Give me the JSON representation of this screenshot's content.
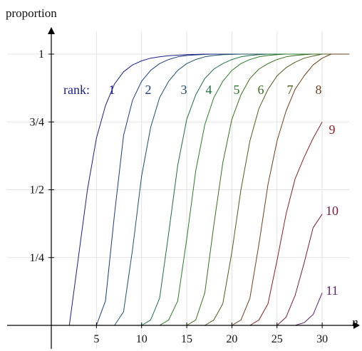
{
  "chart_data": {
    "type": "line",
    "title": "",
    "ylabel": "proportion",
    "xlabel": "n",
    "xlim": [
      -1,
      33
    ],
    "ylim": [
      -0.04,
      1.1
    ],
    "grid": true,
    "x_ticks": [
      {
        "value": 5,
        "label": "5"
      },
      {
        "value": 10,
        "label": "10"
      },
      {
        "value": 15,
        "label": "15"
      },
      {
        "value": 20,
        "label": "20"
      },
      {
        "value": 25,
        "label": "25"
      },
      {
        "value": 30,
        "label": "30"
      }
    ],
    "y_ticks": [
      {
        "value": 0.25,
        "label": "1/4"
      },
      {
        "value": 0.5,
        "label": "1/2"
      },
      {
        "value": 0.75,
        "label": "3/4"
      },
      {
        "value": 1,
        "label": "1"
      }
    ],
    "legend_prefix": "rank:",
    "series": [
      {
        "name": "1",
        "color": "#1a1f8a",
        "x": [
          2,
          3,
          4,
          5,
          6,
          7,
          8,
          9,
          10,
          11,
          12,
          13,
          14,
          15,
          16,
          17,
          18,
          19,
          20,
          21,
          22,
          23,
          24,
          25,
          26,
          27,
          28,
          29,
          30,
          31,
          32,
          33
        ],
        "y": [
          0,
          0.25,
          0.5,
          0.69,
          0.81,
          0.89,
          0.935,
          0.96,
          0.975,
          0.985,
          0.99,
          0.994,
          0.996,
          0.998,
          0.999,
          1,
          1,
          1,
          1,
          1,
          1,
          1,
          1,
          1,
          1,
          1,
          1,
          1,
          1,
          1,
          1,
          1
        ]
      },
      {
        "name": "2",
        "color": "#1d3a80",
        "x": [
          5,
          6,
          7,
          8,
          9,
          10,
          11,
          12,
          13,
          14,
          15,
          16,
          17,
          18,
          19,
          20,
          21,
          22,
          23,
          24,
          25,
          26,
          27,
          28,
          29,
          30,
          31,
          32,
          33
        ],
        "y": [
          0,
          0.09,
          0.41,
          0.7,
          0.83,
          0.9,
          0.94,
          0.965,
          0.98,
          0.99,
          0.995,
          0.997,
          0.999,
          1,
          1,
          1,
          1,
          1,
          1,
          1,
          1,
          1,
          1,
          1,
          1,
          1,
          1,
          1,
          1
        ]
      },
      {
        "name": "3",
        "color": "#1f5066",
        "x": [
          7,
          8,
          9,
          10,
          11,
          12,
          13,
          14,
          15,
          16,
          17,
          18,
          19,
          20,
          21,
          22,
          23,
          24,
          25,
          26,
          27,
          28,
          29,
          30,
          31,
          32,
          33
        ],
        "y": [
          0,
          0.05,
          0.28,
          0.55,
          0.73,
          0.84,
          0.9,
          0.94,
          0.965,
          0.98,
          0.99,
          0.995,
          0.998,
          0.999,
          1,
          1,
          1,
          1,
          1,
          1,
          1,
          1,
          1,
          1,
          1,
          1,
          1
        ]
      },
      {
        "name": "4",
        "color": "#1f7040",
        "x": [
          10,
          11,
          12,
          13,
          14,
          15,
          16,
          17,
          18,
          19,
          20,
          21,
          22,
          23,
          24,
          25,
          26,
          27,
          28,
          29,
          30,
          31,
          32,
          33
        ],
        "y": [
          0,
          0.02,
          0.1,
          0.34,
          0.59,
          0.76,
          0.85,
          0.91,
          0.945,
          0.965,
          0.98,
          0.99,
          0.995,
          0.998,
          1,
          1,
          1,
          1,
          1,
          1,
          1,
          1,
          1,
          1
        ]
      },
      {
        "name": "5",
        "color": "#2a7d27",
        "x": [
          12,
          13,
          14,
          15,
          16,
          17,
          18,
          19,
          20,
          21,
          22,
          23,
          24,
          25,
          26,
          27,
          28,
          29,
          30,
          31,
          32,
          33
        ],
        "y": [
          0,
          0.02,
          0.09,
          0.32,
          0.57,
          0.74,
          0.84,
          0.9,
          0.94,
          0.965,
          0.98,
          0.99,
          0.995,
          0.998,
          1,
          1,
          1,
          1,
          1,
          1,
          1,
          1
        ]
      },
      {
        "name": "6",
        "color": "#3a701f",
        "x": [
          15,
          16,
          17,
          18,
          19,
          20,
          21,
          22,
          23,
          24,
          25,
          26,
          27,
          28,
          29,
          30,
          31,
          32,
          33
        ],
        "y": [
          0,
          0.02,
          0.12,
          0.37,
          0.6,
          0.76,
          0.85,
          0.91,
          0.945,
          0.965,
          0.98,
          0.99,
          0.995,
          0.998,
          1,
          1,
          1,
          1,
          1
        ]
      },
      {
        "name": "7",
        "color": "#4f5c1d",
        "x": [
          17,
          18,
          19,
          20,
          21,
          22,
          23,
          24,
          25,
          26,
          27,
          28,
          29,
          30,
          31,
          32,
          33
        ],
        "y": [
          0,
          0.02,
          0.08,
          0.27,
          0.5,
          0.68,
          0.8,
          0.87,
          0.92,
          0.95,
          0.97,
          0.985,
          0.993,
          1,
          1,
          1,
          1
        ]
      },
      {
        "name": "8",
        "color": "#6e3f1c",
        "x": [
          20,
          21,
          22,
          23,
          24,
          25,
          26,
          27,
          28,
          29,
          30,
          31,
          32,
          33
        ],
        "y": [
          0,
          0.02,
          0.1,
          0.3,
          0.52,
          0.68,
          0.79,
          0.87,
          0.92,
          0.96,
          0.985,
          1,
          1,
          1
        ]
      },
      {
        "name": "9",
        "color": "#8a1f1f",
        "x": [
          22,
          23,
          24,
          25,
          26,
          27,
          28,
          29,
          30
        ],
        "y": [
          0,
          0.02,
          0.08,
          0.24,
          0.41,
          0.54,
          0.62,
          0.69,
          0.75
        ]
      },
      {
        "name": "10",
        "color": "#7a1d3a",
        "x": [
          25,
          26,
          27,
          28,
          29,
          30
        ],
        "y": [
          0,
          0.03,
          0.11,
          0.23,
          0.36,
          0.41
        ]
      },
      {
        "name": "11",
        "color": "#5c1f6e",
        "x": [
          27,
          28,
          29,
          30
        ],
        "y": [
          0,
          0.01,
          0.04,
          0.12
        ]
      }
    ]
  }
}
